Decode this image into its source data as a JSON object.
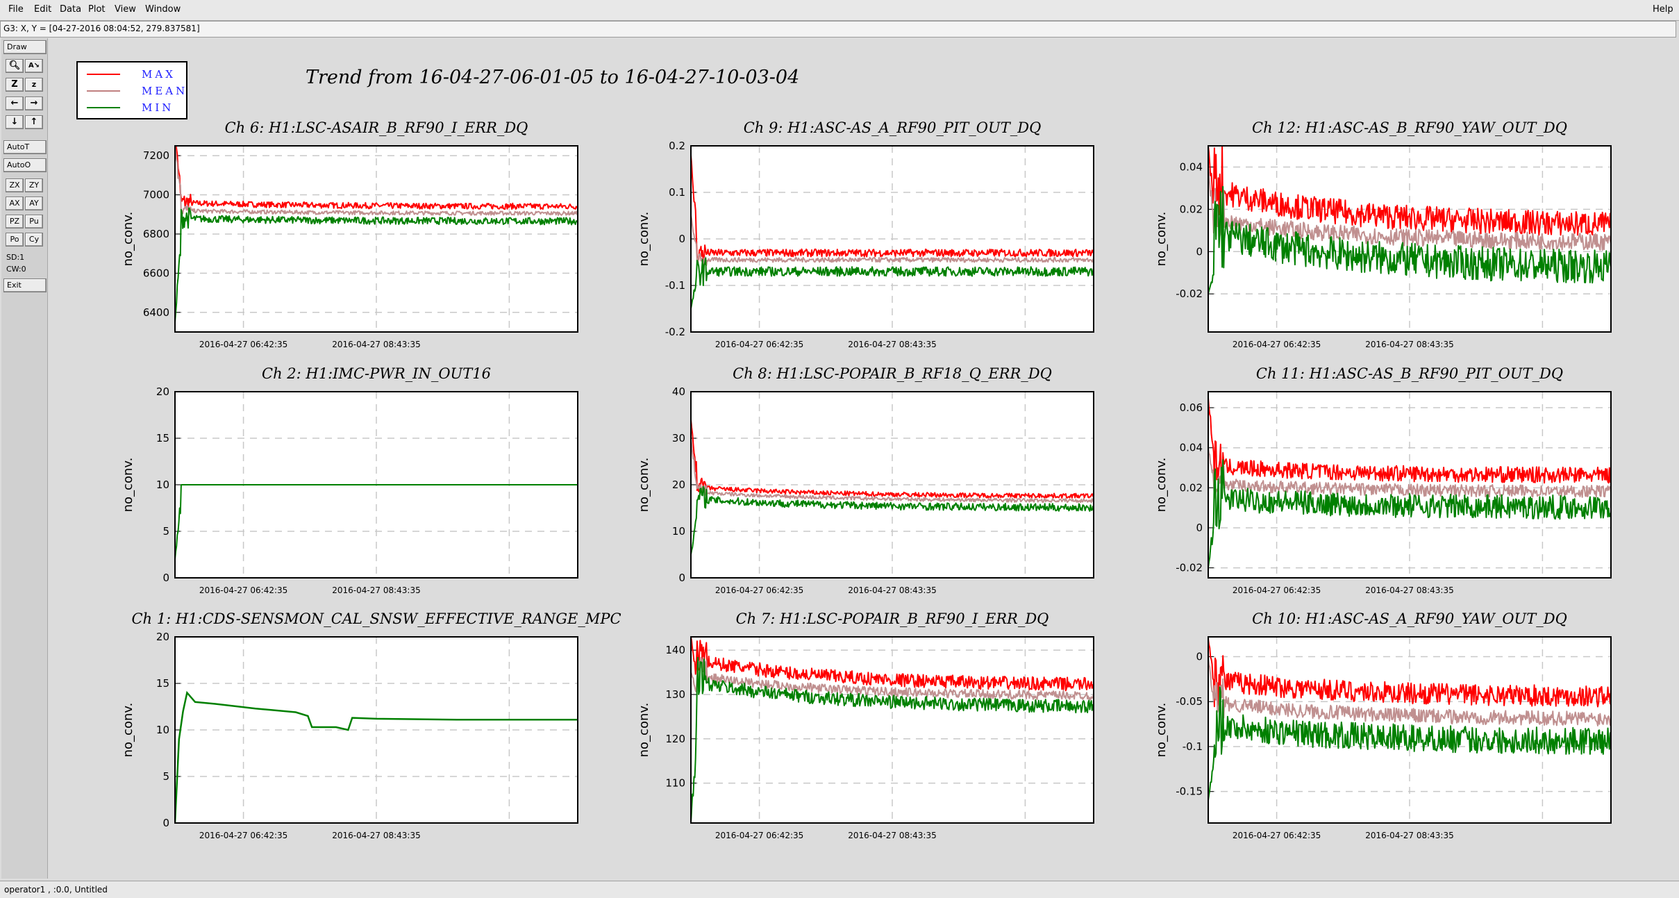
{
  "menu": {
    "items": [
      "File",
      "Edit",
      "Data",
      "Plot",
      "View",
      "Window"
    ],
    "help": "Help"
  },
  "coord_readout": "G3: X, Y = [04-27-2016 08:04:52, 279.837581]",
  "toolbox": {
    "draw": "Draw",
    "auto_t": "AutoT",
    "auto_o": "AutoO",
    "icon_buttons": [
      [
        "magnify-icon",
        "text-tool-icon"
      ],
      [
        "zoom-in-icon",
        "zoom-out-icon"
      ],
      [
        "pan-left-icon",
        "pan-right-icon"
      ],
      [
        "pan-down-icon",
        "pan-up-icon"
      ]
    ],
    "small_buttons": [
      [
        "ZX",
        "ZY"
      ],
      [
        "AX",
        "AY"
      ],
      [
        "PZ",
        "Pu"
      ],
      [
        "Po",
        "Cy"
      ]
    ],
    "sd": "SD:1",
    "cw": "CW:0",
    "exit": "Exit"
  },
  "legend": [
    {
      "label": "MAX",
      "color": "#ff0000"
    },
    {
      "label": "MEAN",
      "color": "#c08080"
    },
    {
      "label": "MIN",
      "color": "#008000"
    }
  ],
  "main_title": "Trend from 16-04-27-06-01-05 to 16-04-27-10-03-04",
  "statusbar": "operator1 , :0.0, Untitled",
  "colors": {
    "max": "#ff0000",
    "mean": "#c09090",
    "min": "#008000",
    "grid": "#c8c8c8"
  },
  "chart_data": [
    {
      "type": "line",
      "title": "Ch 6: H1:LSC-ASAIR_B_RF90_I_ERR_DQ",
      "ylabel": "no_conv.",
      "xticks": [
        "2016-04-27 06:42:35",
        "2016-04-27 08:43:35"
      ],
      "yticks": [
        "7200",
        "7000",
        "6800",
        "6600",
        "6400"
      ],
      "ylim": [
        6300,
        7250
      ],
      "series": [
        {
          "name": "MAX",
          "level": 6940,
          "noise": 15,
          "drift": 20,
          "start": 7300
        },
        {
          "name": "MEAN",
          "level": 6905,
          "noise": 10,
          "drift": 15,
          "start": 7250
        },
        {
          "name": "MIN",
          "level": 6865,
          "noise": 18,
          "drift": 15,
          "start": 6350
        }
      ]
    },
    {
      "type": "line",
      "title": "Ch 9: H1:ASC-AS_A_RF90_PIT_OUT_DQ",
      "ylabel": "no_conv.",
      "xticks": [
        "2016-04-27 06:42:35",
        "2016-04-27 08:43:35"
      ],
      "yticks": [
        "0.2",
        "0.1",
        "0",
        "-0.1",
        "-0.2"
      ],
      "ylim": [
        -0.2,
        0.2
      ],
      "series": [
        {
          "name": "MAX",
          "level": -0.03,
          "noise": 0.008,
          "drift": 0,
          "start": 0.18
        },
        {
          "name": "MEAN",
          "level": -0.045,
          "noise": 0.005,
          "drift": 0,
          "start": 0.05
        },
        {
          "name": "MIN",
          "level": -0.07,
          "noise": 0.01,
          "drift": 0,
          "start": -0.15
        }
      ]
    },
    {
      "type": "line",
      "title": "Ch 12: H1:ASC-AS_B_RF90_YAW_OUT_DQ",
      "ylabel": "no_conv.",
      "xticks": [
        "2016-04-27 06:42:35",
        "2016-04-27 08:43:35"
      ],
      "yticks": [
        "0.04",
        "0.02",
        "0",
        "-0.02"
      ],
      "ylim": [
        -0.038,
        0.05
      ],
      "series": [
        {
          "name": "MAX",
          "level": 0.012,
          "noise": 0.006,
          "drift": 0.018,
          "start": 0.05
        },
        {
          "name": "MEAN",
          "level": 0.004,
          "noise": 0.004,
          "drift": 0.012,
          "start": 0.04
        },
        {
          "name": "MIN",
          "level": -0.008,
          "noise": 0.008,
          "drift": 0.018,
          "start": -0.02
        }
      ]
    },
    {
      "type": "line",
      "title": "Ch 2: H1:IMC-PWR_IN_OUT16",
      "ylabel": "no_conv.",
      "xticks": [
        "2016-04-27 06:42:35",
        "2016-04-27 08:43:35"
      ],
      "yticks": [
        "20",
        "15",
        "10",
        "5",
        "0"
      ],
      "ylim": [
        0,
        20
      ],
      "series": [
        {
          "name": "MIN",
          "level": 10,
          "noise": 0,
          "drift": 0,
          "start": 2
        }
      ]
    },
    {
      "type": "line",
      "title": "Ch 8: H1:LSC-POPAIR_B_RF18_Q_ERR_DQ",
      "ylabel": "no_conv.",
      "xticks": [
        "2016-04-27 06:42:35",
        "2016-04-27 08:43:35"
      ],
      "yticks": [
        "40",
        "30",
        "20",
        "10",
        "0"
      ],
      "ylim": [
        0,
        40
      ],
      "series": [
        {
          "name": "MAX",
          "level": 17.5,
          "noise": 0.5,
          "drift": 2,
          "start": 34
        },
        {
          "name": "MEAN",
          "level": 16.5,
          "noise": 0.4,
          "drift": 2,
          "start": 30
        },
        {
          "name": "MIN",
          "level": 15,
          "noise": 0.8,
          "drift": 2,
          "start": 5
        }
      ]
    },
    {
      "type": "line",
      "title": "Ch 11: H1:ASC-AS_B_RF90_PIT_OUT_DQ",
      "ylabel": "no_conv.",
      "xticks": [
        "2016-04-27 06:42:35",
        "2016-04-27 08:43:35"
      ],
      "yticks": [
        "0.06",
        "0.04",
        "0.02",
        "0",
        "-0.02"
      ],
      "ylim": [
        -0.025,
        0.068
      ],
      "series": [
        {
          "name": "MAX",
          "level": 0.026,
          "noise": 0.004,
          "drift": 0.005,
          "start": 0.065
        },
        {
          "name": "MEAN",
          "level": 0.018,
          "noise": 0.003,
          "drift": 0.004,
          "start": 0.04
        },
        {
          "name": "MIN",
          "level": 0.01,
          "noise": 0.006,
          "drift": 0.005,
          "start": -0.02
        }
      ]
    },
    {
      "type": "line",
      "title": "Ch 1: H1:CDS-SENSMON_CAL_SNSW_EFFECTIVE_RANGE_MPC",
      "ylabel": "no_conv.",
      "xticks": [
        "2016-04-27 06:42:35",
        "2016-04-27 08:43:35"
      ],
      "yticks": [
        "20",
        "15",
        "10",
        "5",
        "0"
      ],
      "ylim": [
        0,
        20
      ],
      "series": [
        {
          "name": "MIN",
          "points": [
            [
              0,
              0
            ],
            [
              0.01,
              9
            ],
            [
              0.02,
              12
            ],
            [
              0.03,
              14
            ],
            [
              0.05,
              13
            ],
            [
              0.1,
              12.8
            ],
            [
              0.2,
              12.3
            ],
            [
              0.3,
              11.9
            ],
            [
              0.33,
              11.5
            ],
            [
              0.34,
              10.3
            ],
            [
              0.4,
              10.3
            ],
            [
              0.43,
              10
            ],
            [
              0.44,
              11.3
            ],
            [
              0.5,
              11.2
            ],
            [
              0.7,
              11.1
            ],
            [
              1,
              11.1
            ]
          ]
        }
      ]
    },
    {
      "type": "line",
      "title": "Ch 7: H1:LSC-POPAIR_B_RF90_I_ERR_DQ",
      "ylabel": "no_conv.",
      "xticks": [
        "2016-04-27 06:42:35",
        "2016-04-27 08:43:35"
      ],
      "yticks": [
        "140",
        "130",
        "120",
        "110"
      ],
      "ylim": [
        101,
        143
      ],
      "series": [
        {
          "name": "MAX",
          "level": 132,
          "noise": 1.5,
          "drift": 6,
          "start": 143
        },
        {
          "name": "MEAN",
          "level": 129.5,
          "noise": 1,
          "drift": 5,
          "start": 135
        },
        {
          "name": "MIN",
          "level": 127,
          "noise": 1.5,
          "drift": 6,
          "start": 101
        }
      ]
    },
    {
      "type": "line",
      "title": "Ch 10: H1:ASC-AS_A_RF90_YAW_OUT_DQ",
      "ylabel": "no_conv.",
      "xticks": [
        "2016-04-27 06:42:35",
        "2016-04-27 08:43:35"
      ],
      "yticks": [
        "0",
        "-0.05",
        "-0.1",
        "-0.15"
      ],
      "ylim": [
        -0.185,
        0.022
      ],
      "series": [
        {
          "name": "MAX",
          "level": -0.045,
          "noise": 0.012,
          "drift": 0.02,
          "start": 0.02
        },
        {
          "name": "MEAN",
          "level": -0.07,
          "noise": 0.008,
          "drift": 0.02,
          "start": 0.0
        },
        {
          "name": "MIN",
          "level": -0.095,
          "noise": 0.015,
          "drift": 0.02,
          "start": -0.16
        }
      ]
    }
  ]
}
